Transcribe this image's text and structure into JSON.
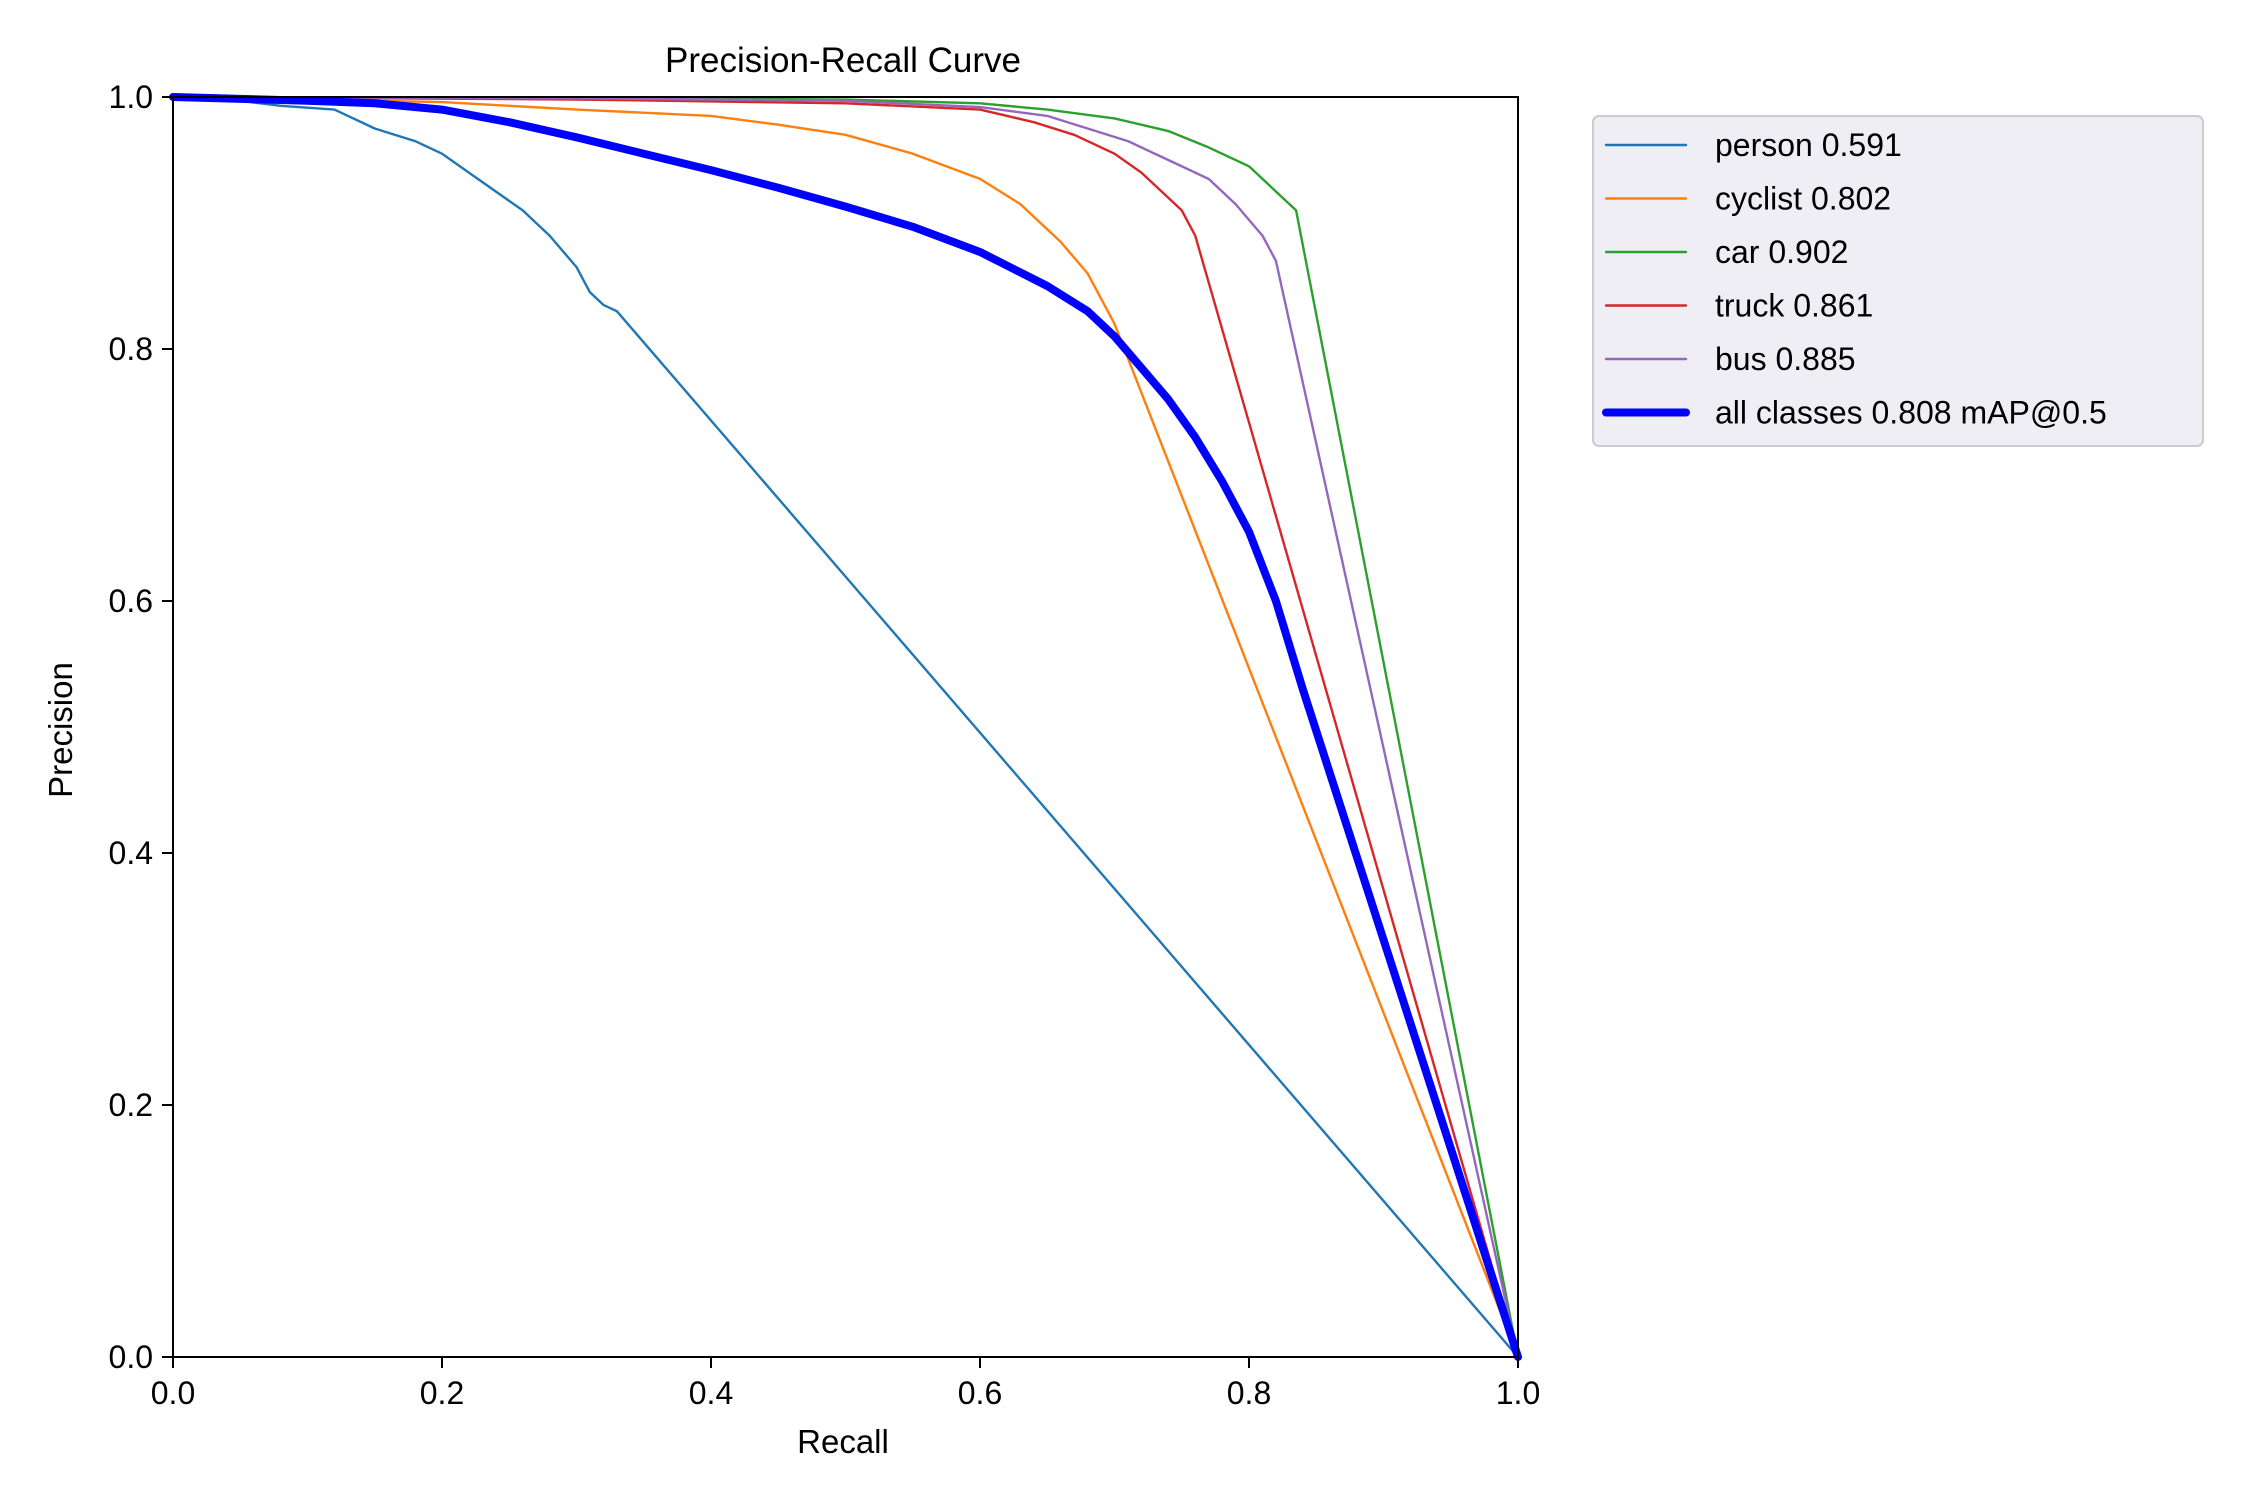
{
  "chart_data": {
    "type": "line",
    "title": "Precision-Recall Curve",
    "xlabel": "Recall",
    "ylabel": "Precision",
    "xlim": [
      0,
      1
    ],
    "ylim": [
      0,
      1
    ],
    "xticks": [
      "0.0",
      "0.2",
      "0.4",
      "0.6",
      "0.8",
      "1.0"
    ],
    "yticks": [
      "0.0",
      "0.2",
      "0.4",
      "0.6",
      "0.8",
      "1.0"
    ],
    "grid": false,
    "legend_position": "outside-top-right",
    "series": [
      {
        "name": "person 0.591",
        "color": "#1f77b4",
        "width": "thin",
        "x": [
          0.0,
          0.05,
          0.08,
          0.12,
          0.15,
          0.18,
          0.2,
          0.22,
          0.24,
          0.26,
          0.28,
          0.3,
          0.31,
          0.32,
          0.33,
          1.0
        ],
        "y": [
          1.0,
          0.997,
          0.993,
          0.99,
          0.975,
          0.965,
          0.955,
          0.94,
          0.925,
          0.91,
          0.89,
          0.865,
          0.845,
          0.835,
          0.83,
          0.0
        ]
      },
      {
        "name": "cyclist 0.802",
        "color": "#ff7f0e",
        "width": "thin",
        "x": [
          0.0,
          0.2,
          0.3,
          0.4,
          0.45,
          0.5,
          0.55,
          0.6,
          0.63,
          0.66,
          0.68,
          0.69,
          0.7,
          1.0
        ],
        "y": [
          1.0,
          0.996,
          0.99,
          0.985,
          0.978,
          0.97,
          0.955,
          0.935,
          0.915,
          0.885,
          0.86,
          0.84,
          0.82,
          0.0
        ]
      },
      {
        "name": "car 0.902",
        "color": "#2ca02c",
        "width": "thin",
        "x": [
          0.0,
          0.3,
          0.5,
          0.6,
          0.65,
          0.7,
          0.74,
          0.77,
          0.8,
          0.82,
          0.835,
          1.0
        ],
        "y": [
          1.0,
          0.999,
          0.998,
          0.995,
          0.99,
          0.983,
          0.973,
          0.96,
          0.945,
          0.925,
          0.91,
          0.0
        ]
      },
      {
        "name": "truck 0.861",
        "color": "#d62728",
        "width": "thin",
        "x": [
          0.0,
          0.3,
          0.5,
          0.6,
          0.64,
          0.67,
          0.7,
          0.72,
          0.74,
          0.75,
          0.76,
          1.0
        ],
        "y": [
          1.0,
          0.998,
          0.995,
          0.99,
          0.98,
          0.97,
          0.955,
          0.94,
          0.92,
          0.91,
          0.89,
          0.0
        ]
      },
      {
        "name": "bus 0.885",
        "color": "#9467bd",
        "width": "thin",
        "x": [
          0.0,
          0.3,
          0.5,
          0.6,
          0.65,
          0.68,
          0.71,
          0.74,
          0.77,
          0.79,
          0.81,
          0.82,
          1.0
        ],
        "y": [
          1.0,
          0.999,
          0.997,
          0.992,
          0.985,
          0.975,
          0.965,
          0.95,
          0.935,
          0.915,
          0.89,
          0.87,
          0.0
        ]
      },
      {
        "name": "all classes 0.808 mAP@0.5",
        "color": "#0000ff",
        "width": "thick",
        "x": [
          0.0,
          0.1,
          0.15,
          0.2,
          0.25,
          0.3,
          0.35,
          0.4,
          0.45,
          0.5,
          0.55,
          0.6,
          0.65,
          0.68,
          0.7,
          0.72,
          0.74,
          0.76,
          0.78,
          0.8,
          0.82,
          0.84,
          1.0
        ],
        "y": [
          1.0,
          0.997,
          0.995,
          0.99,
          0.98,
          0.968,
          0.955,
          0.942,
          0.928,
          0.913,
          0.897,
          0.877,
          0.85,
          0.83,
          0.81,
          0.785,
          0.76,
          0.73,
          0.695,
          0.655,
          0.6,
          0.53,
          0.0
        ]
      }
    ]
  }
}
